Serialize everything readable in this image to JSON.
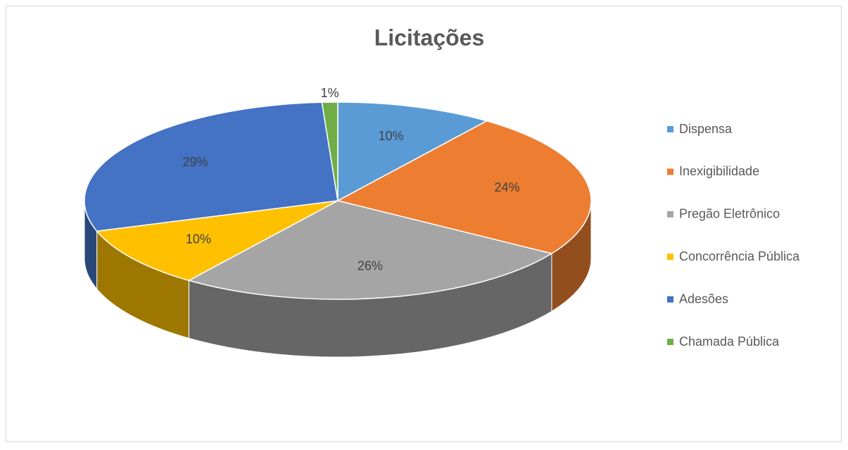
{
  "chart_data": {
    "type": "pie",
    "title": "Licitações",
    "categories": [
      "Dispensa",
      "Inexigibilidade",
      "Pregão Eletrônico",
      "Concorrência Pública",
      "Adesões",
      "Chamada Pública"
    ],
    "values": [
      10,
      24,
      26,
      10,
      29,
      1
    ],
    "value_labels": [
      "10%",
      "24%",
      "26%",
      "10%",
      "29%",
      "1%"
    ],
    "colors": [
      "#5b9bd5",
      "#ed7d31",
      "#a5a5a5",
      "#ffc000",
      "#4472c4",
      "#70ad47"
    ],
    "legend": "right"
  }
}
